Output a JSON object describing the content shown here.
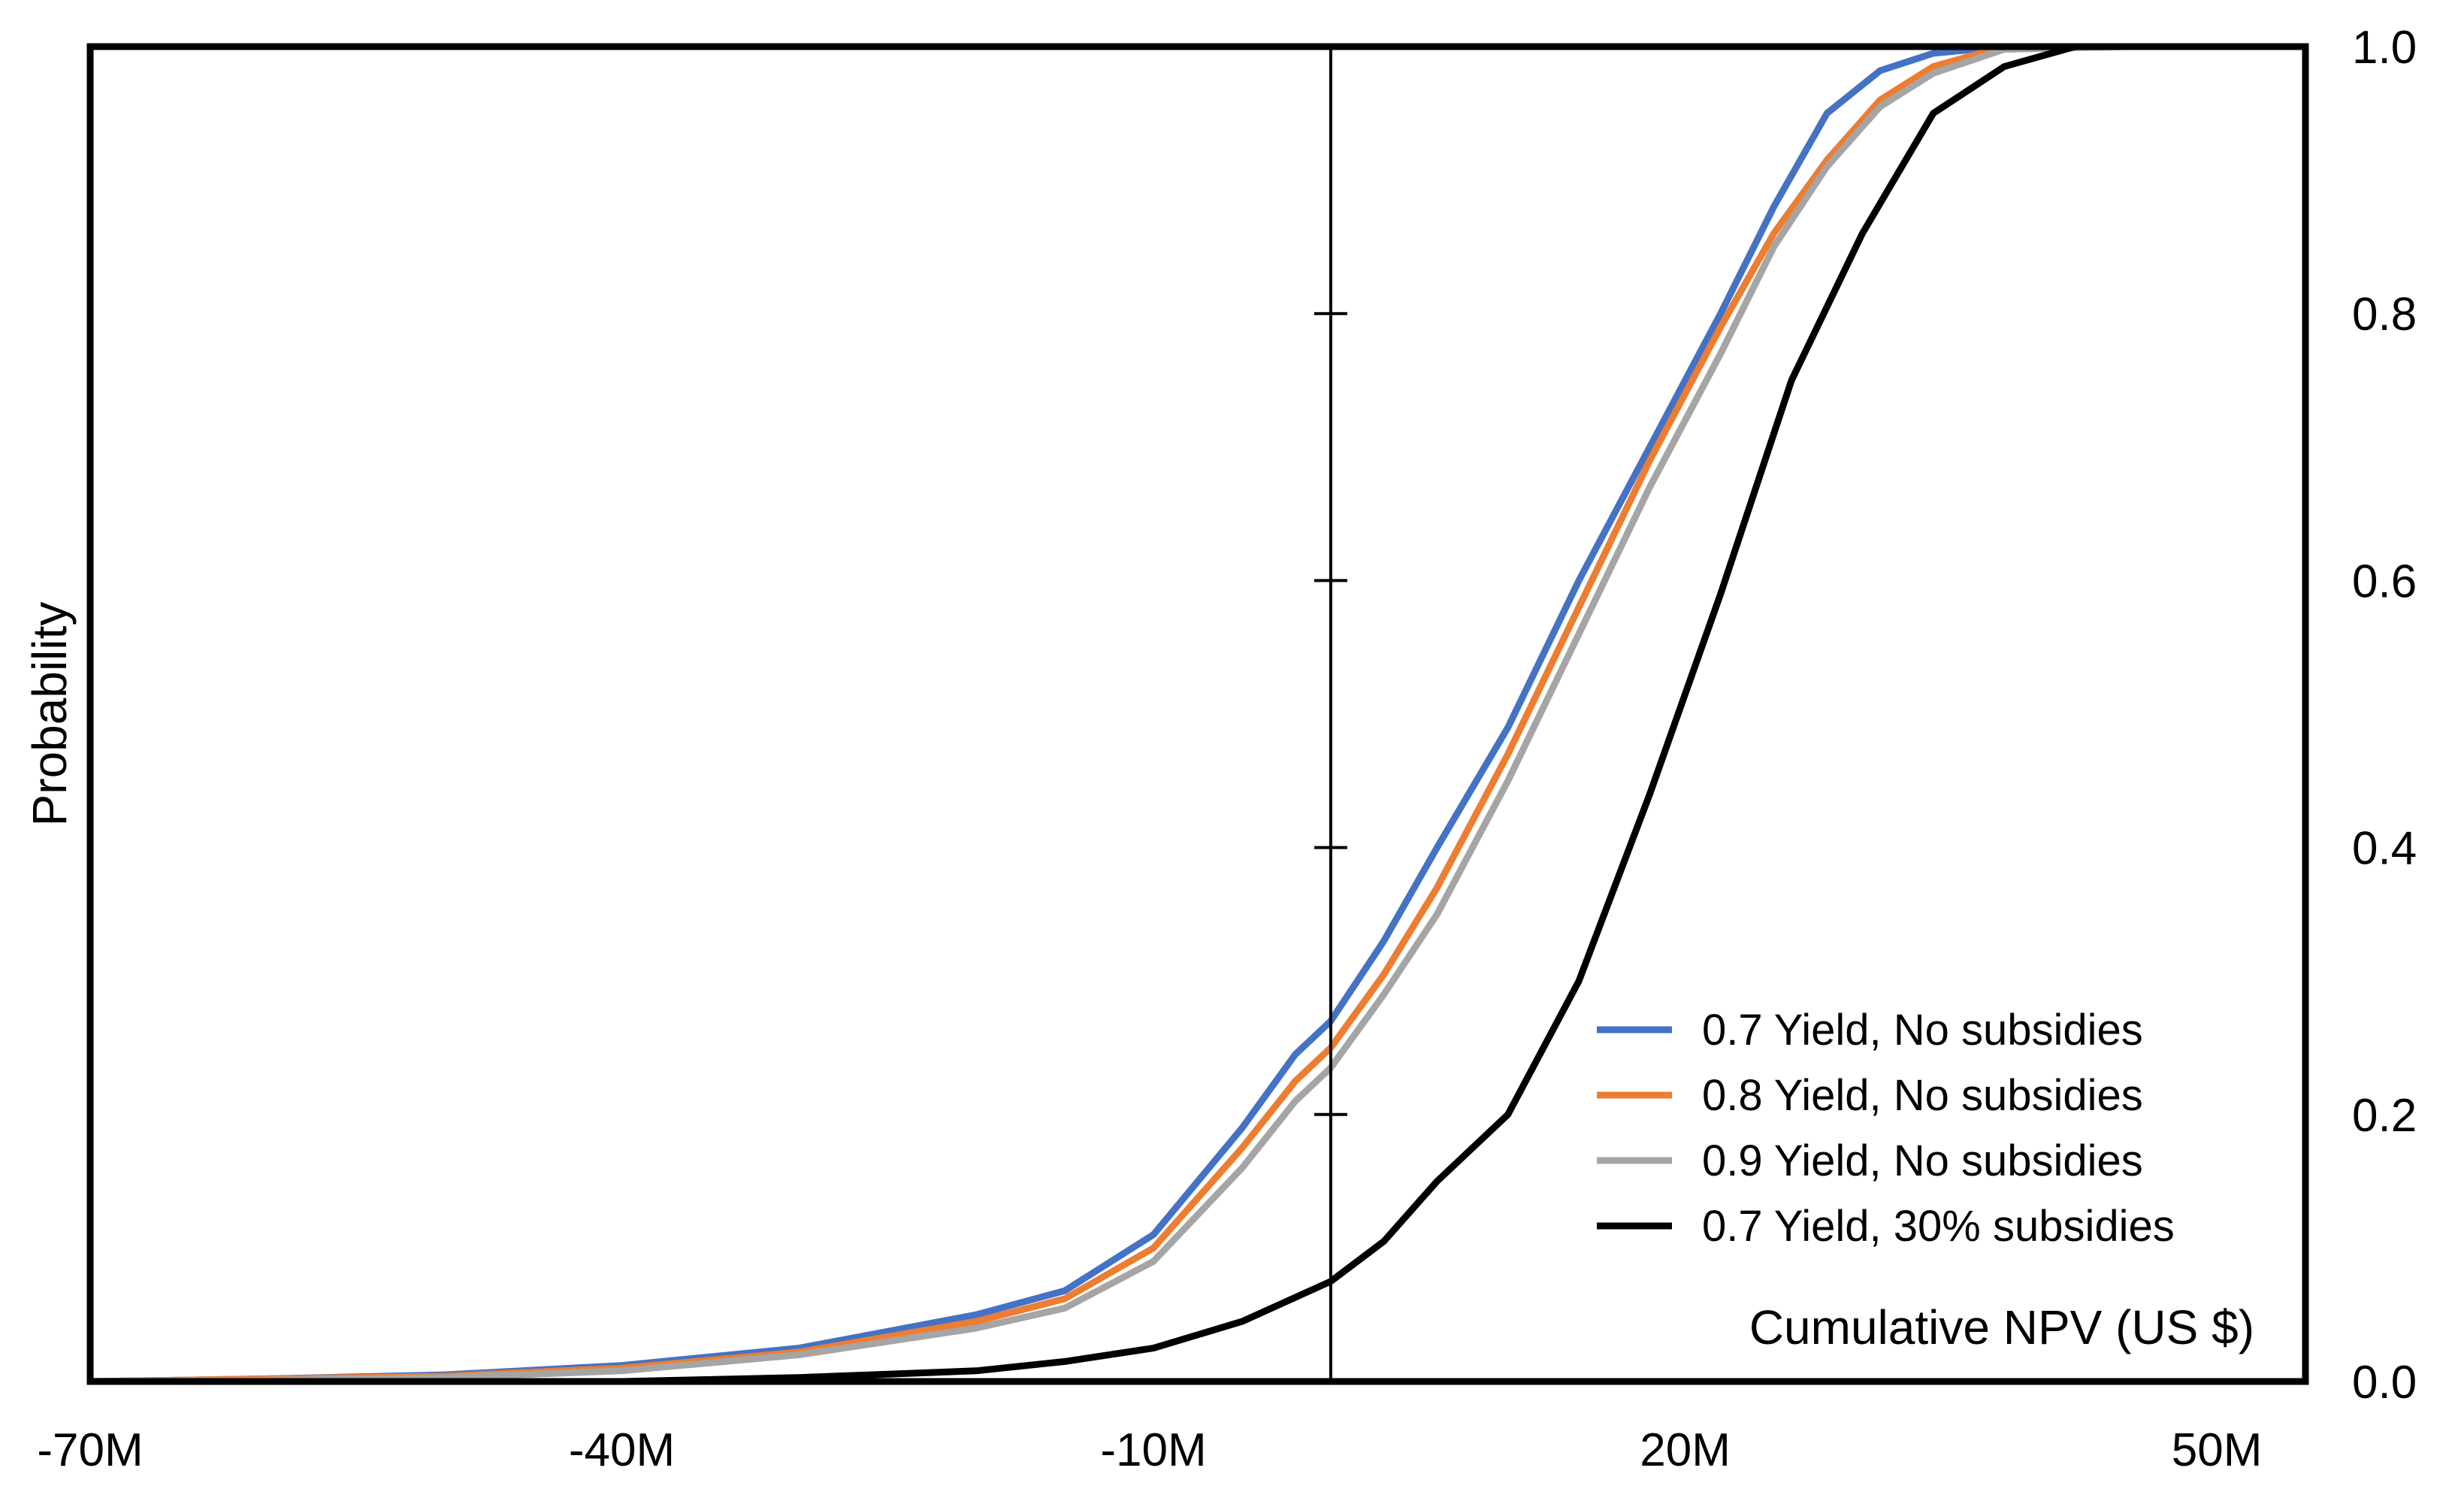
{
  "chart_data": {
    "type": "line",
    "title": "",
    "xlabel": "Cumulative NPV (US $)",
    "ylabel": "Probability",
    "xlim": [
      -70,
      55
    ],
    "ylim": [
      0,
      1.0
    ],
    "x_ticks": [
      {
        "value": -70,
        "label": "-70M"
      },
      {
        "value": -40,
        "label": "-40M"
      },
      {
        "value": -10,
        "label": "-10M"
      },
      {
        "value": 20,
        "label": "20M"
      },
      {
        "value": 50,
        "label": "50M"
      }
    ],
    "y_ticks": [
      {
        "value": 0.0,
        "label": "0.0"
      },
      {
        "value": 0.2,
        "label": "0.2"
      },
      {
        "value": 0.4,
        "label": "0.4"
      },
      {
        "value": 0.6,
        "label": "0.6"
      },
      {
        "value": 0.8,
        "label": "0.8"
      },
      {
        "value": 1.0,
        "label": "1.0"
      }
    ],
    "x_axis_crossing": 0,
    "legend_position": "bottom-right",
    "series": [
      {
        "name": "0.7 Yield, No subsidies",
        "color": "#4472C4",
        "points": [
          [
            -70,
            0.0
          ],
          [
            -60,
            0.002
          ],
          [
            -50,
            0.005
          ],
          [
            -40,
            0.012
          ],
          [
            -30,
            0.025
          ],
          [
            -20,
            0.05
          ],
          [
            -15,
            0.068
          ],
          [
            -10,
            0.11
          ],
          [
            -5,
            0.19
          ],
          [
            -2,
            0.245
          ],
          [
            0,
            0.27
          ],
          [
            3,
            0.33
          ],
          [
            6,
            0.4
          ],
          [
            10,
            0.49
          ],
          [
            14,
            0.6
          ],
          [
            18,
            0.7
          ],
          [
            22,
            0.8
          ],
          [
            25,
            0.88
          ],
          [
            28,
            0.95
          ],
          [
            31,
            0.982
          ],
          [
            34,
            0.995
          ],
          [
            38,
            1.0
          ],
          [
            45,
            1.0
          ],
          [
            52,
            1.0
          ]
        ]
      },
      {
        "name": "0.8 Yield, No subsidies",
        "color": "#ED7D31",
        "points": [
          [
            -70,
            0.0
          ],
          [
            -60,
            0.002
          ],
          [
            -50,
            0.004
          ],
          [
            -40,
            0.01
          ],
          [
            -30,
            0.022
          ],
          [
            -20,
            0.045
          ],
          [
            -15,
            0.062
          ],
          [
            -10,
            0.1
          ],
          [
            -5,
            0.175
          ],
          [
            -2,
            0.225
          ],
          [
            0,
            0.25
          ],
          [
            3,
            0.305
          ],
          [
            6,
            0.37
          ],
          [
            10,
            0.47
          ],
          [
            14,
            0.58
          ],
          [
            18,
            0.69
          ],
          [
            22,
            0.79
          ],
          [
            25,
            0.86
          ],
          [
            28,
            0.915
          ],
          [
            31,
            0.96
          ],
          [
            34,
            0.985
          ],
          [
            38,
            1.0
          ],
          [
            45,
            1.0
          ],
          [
            52,
            1.0
          ]
        ]
      },
      {
        "name": "0.9 Yield, No subsidies",
        "color": "#A5A5A5",
        "points": [
          [
            -70,
            0.0
          ],
          [
            -60,
            0.001
          ],
          [
            -50,
            0.003
          ],
          [
            -40,
            0.008
          ],
          [
            -30,
            0.02
          ],
          [
            -20,
            0.04
          ],
          [
            -15,
            0.055
          ],
          [
            -10,
            0.09
          ],
          [
            -5,
            0.16
          ],
          [
            -2,
            0.21
          ],
          [
            0,
            0.235
          ],
          [
            3,
            0.29
          ],
          [
            6,
            0.35
          ],
          [
            10,
            0.45
          ],
          [
            14,
            0.56
          ],
          [
            18,
            0.67
          ],
          [
            22,
            0.77
          ],
          [
            25,
            0.85
          ],
          [
            28,
            0.91
          ],
          [
            31,
            0.955
          ],
          [
            34,
            0.98
          ],
          [
            38,
            0.998
          ],
          [
            45,
            1.0
          ],
          [
            52,
            1.0
          ]
        ]
      },
      {
        "name": "0.7 Yield, 30% subsidies",
        "color": "#000000",
        "points": [
          [
            -70,
            0.0
          ],
          [
            -50,
            0.0
          ],
          [
            -40,
            0.0
          ],
          [
            -30,
            0.003
          ],
          [
            -20,
            0.008
          ],
          [
            -15,
            0.015
          ],
          [
            -10,
            0.025
          ],
          [
            -5,
            0.045
          ],
          [
            0,
            0.075
          ],
          [
            3,
            0.105
          ],
          [
            6,
            0.15
          ],
          [
            10,
            0.2
          ],
          [
            14,
            0.3
          ],
          [
            18,
            0.44
          ],
          [
            22,
            0.59
          ],
          [
            26,
            0.75
          ],
          [
            30,
            0.86
          ],
          [
            34,
            0.95
          ],
          [
            38,
            0.985
          ],
          [
            42,
            1.0
          ],
          [
            50,
            1.0
          ]
        ]
      }
    ]
  }
}
